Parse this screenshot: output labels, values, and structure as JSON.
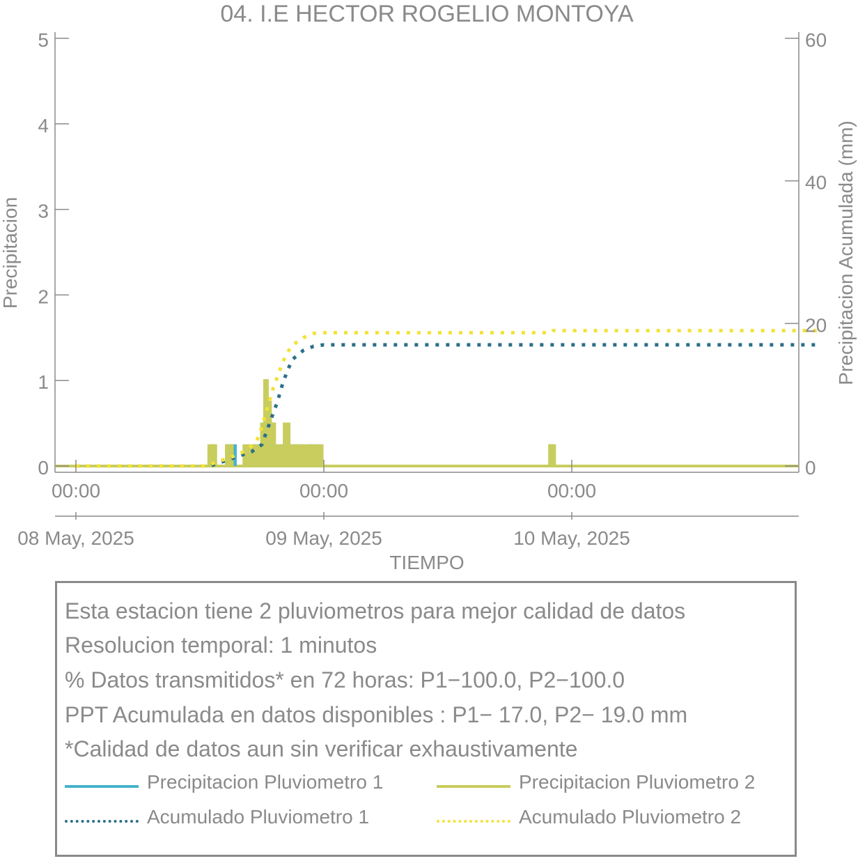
{
  "chart_data": {
    "type": "bar",
    "title": "04. I.E HECTOR ROGELIO MONTOYA",
    "xlabel": "TIEMPO",
    "ylabel": "Precipitacion",
    "y2label": "Precipitacion Acumulada (mm)",
    "ylim": [
      0,
      5
    ],
    "y2lim": [
      0,
      60
    ],
    "yticks": [
      "0",
      "1",
      "2",
      "3",
      "4",
      "5"
    ],
    "y2ticks": [
      "0",
      "20",
      "40",
      "60"
    ],
    "xlim_hours": [
      0,
      72
    ],
    "xtick_time_labels": [
      "00:00",
      "00:00",
      "00:00"
    ],
    "xtick_date_labels": [
      "08 May, 2025",
      "09 May, 2025",
      "10 May, 2025"
    ],
    "grid": false,
    "series": [
      {
        "name": "Precipitacion Pluviometro 1",
        "kind": "bars",
        "color": "#46b3cc",
        "points": [
          [
            13.3,
            0.254
          ],
          [
            14.8,
            0.254
          ],
          [
            15.3,
            0.254
          ],
          [
            17.5,
            0.254
          ],
          [
            18.2,
            0.254
          ],
          [
            18.5,
            0.762
          ],
          [
            19.0,
            0.508
          ],
          [
            20.1,
            0.254
          ],
          [
            20.6,
            0.254
          ],
          [
            21.2,
            0.254
          ],
          [
            21.8,
            0.254
          ],
          [
            22.6,
            0.254
          ],
          [
            23.3,
            0.254
          ],
          [
            46.0,
            0.254
          ]
        ]
      },
      {
        "name": "Precipitacion Pluviometro 2",
        "kind": "bars",
        "color": "#c8cd5e",
        "points": [
          [
            13.0,
            0.254
          ],
          [
            13.4,
            0.254
          ],
          [
            14.7,
            0.254
          ],
          [
            15.0,
            0.254
          ],
          [
            16.4,
            0.254
          ],
          [
            16.9,
            0.254
          ],
          [
            17.4,
            0.254
          ],
          [
            17.8,
            0.254
          ],
          [
            18.1,
            0.508
          ],
          [
            18.4,
            1.016
          ],
          [
            18.7,
            0.762
          ],
          [
            19.1,
            0.508
          ],
          [
            19.6,
            0.254
          ],
          [
            20.0,
            0.254
          ],
          [
            20.3,
            0.508
          ],
          [
            20.5,
            0.508
          ],
          [
            20.8,
            0.254
          ],
          [
            21.3,
            0.254
          ],
          [
            21.8,
            0.254
          ],
          [
            22.3,
            0.254
          ],
          [
            22.8,
            0.254
          ],
          [
            23.3,
            0.254
          ],
          [
            23.7,
            0.254
          ],
          [
            46.0,
            0.254
          ],
          [
            46.2,
            0.254
          ]
        ]
      },
      {
        "name": "Acumulado Pluviometro 1",
        "kind": "cumulative",
        "color": "#2b6f8a",
        "points": [
          [
            0,
            0
          ],
          [
            13,
            0
          ],
          [
            14,
            0.5
          ],
          [
            15,
            1
          ],
          [
            16,
            1.5
          ],
          [
            17,
            2
          ],
          [
            18,
            3
          ],
          [
            18.5,
            5
          ],
          [
            19,
            7
          ],
          [
            19.5,
            9
          ],
          [
            20,
            11.5
          ],
          [
            20.5,
            13.5
          ],
          [
            21,
            15
          ],
          [
            22,
            16.2
          ],
          [
            23,
            16.8
          ],
          [
            24,
            17
          ],
          [
            46,
            17
          ],
          [
            72,
            17
          ]
        ]
      },
      {
        "name": "Acumulado Pluviometro 2",
        "kind": "cumulative",
        "color": "#f2e23a",
        "points": [
          [
            0,
            0
          ],
          [
            12.5,
            0
          ],
          [
            13.5,
            0.5
          ],
          [
            14.5,
            1
          ],
          [
            15.5,
            1.5
          ],
          [
            16.5,
            2.2
          ],
          [
            17.5,
            3.5
          ],
          [
            18,
            5.5
          ],
          [
            18.5,
            8
          ],
          [
            19,
            10.5
          ],
          [
            19.5,
            12.5
          ],
          [
            20,
            14.5
          ],
          [
            20.5,
            16
          ],
          [
            21,
            17
          ],
          [
            22,
            18
          ],
          [
            23,
            18.6
          ],
          [
            24,
            18.7
          ],
          [
            46,
            18.7
          ],
          [
            46.2,
            19
          ],
          [
            72,
            19
          ]
        ]
      }
    ]
  },
  "info": {
    "lines": [
      "Esta estacion tiene 2 pluviometros para mejor calidad de datos",
      "Resolucion temporal: 1 minutos",
      "% Datos transmitidos* en 72 horas: P1−100.0, P2−100.0",
      "PPT Acumulada en datos disponibles : P1− 17.0, P2− 19.0 mm",
      "*Calidad de datos aun sin verificar exhaustivamente"
    ]
  }
}
